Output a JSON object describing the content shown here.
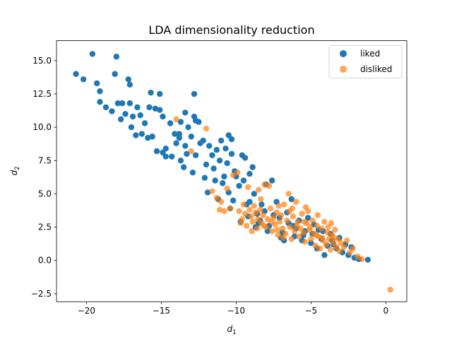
{
  "chart_data": {
    "type": "scatter",
    "title": "LDA dimensionality reduction",
    "xlabel": "d",
    "xlabel_sub": "1",
    "ylabel": "d",
    "ylabel_sub": "2",
    "xlim": [
      -22,
      1.4
    ],
    "ylim": [
      -3.1,
      16.5
    ],
    "xticks": [
      -20,
      -15,
      -10,
      -5,
      0
    ],
    "yticks": [
      -2.5,
      0.0,
      2.5,
      5.0,
      7.5,
      10.0,
      12.5,
      15.0
    ],
    "xtick_labels": [
      "−20",
      "−15",
      "−10",
      "−5",
      "0"
    ],
    "ytick_labels": [
      "−2.5",
      "0.0",
      "2.5",
      "5.0",
      "7.5",
      "10.0",
      "12.5",
      "15.0"
    ],
    "legend_position": "upper-right",
    "series": [
      {
        "name": "liked",
        "color": "#1f77b4",
        "points": [
          [
            -20.7,
            14.0
          ],
          [
            -20.2,
            13.6
          ],
          [
            -19.6,
            15.5
          ],
          [
            -19.3,
            13.3
          ],
          [
            -19.1,
            12.7
          ],
          [
            -19.1,
            11.9
          ],
          [
            -18.7,
            11.5
          ],
          [
            -18.3,
            11.2
          ],
          [
            -18.1,
            14.0
          ],
          [
            -18.0,
            15.3
          ],
          [
            -17.9,
            11.8
          ],
          [
            -17.7,
            10.6
          ],
          [
            -17.6,
            11.8
          ],
          [
            -17.2,
            13.6
          ],
          [
            -17.1,
            13.2
          ],
          [
            -17.1,
            11.8
          ],
          [
            -17.0,
            10.0
          ],
          [
            -16.9,
            10.8
          ],
          [
            -16.6,
            11.5
          ],
          [
            -16.4,
            10.9
          ],
          [
            -16.3,
            9.5
          ],
          [
            -16.1,
            10.3
          ],
          [
            -15.9,
            9.2
          ],
          [
            -15.8,
            11.5
          ],
          [
            -15.7,
            12.6
          ],
          [
            -15.6,
            9.3
          ],
          [
            -15.4,
            11.4
          ],
          [
            -15.1,
            11.3
          ],
          [
            -15.1,
            12.5
          ],
          [
            -14.9,
            10.8
          ],
          [
            -14.9,
            8.1
          ],
          [
            -14.7,
            8.4
          ],
          [
            -14.7,
            7.8
          ],
          [
            -14.4,
            10.3
          ],
          [
            -14.1,
            9.5
          ],
          [
            -14.0,
            8.8
          ],
          [
            -13.8,
            9.2
          ],
          [
            -13.8,
            9.5
          ],
          [
            -13.7,
            10.4
          ],
          [
            -13.7,
            7.5
          ],
          [
            -13.5,
            7.0
          ],
          [
            -13.4,
            8.6
          ],
          [
            -13.4,
            11.1
          ],
          [
            -13.2,
            10.0
          ],
          [
            -13.0,
            9.3
          ],
          [
            -12.8,
            12.5
          ],
          [
            -12.8,
            10.8
          ],
          [
            -12.7,
            10.5
          ],
          [
            -12.7,
            7.9
          ],
          [
            -12.5,
            10.4
          ],
          [
            -12.4,
            8.8
          ],
          [
            -12.2,
            9.0
          ],
          [
            -12.1,
            6.2
          ],
          [
            -12.0,
            7.2
          ],
          [
            -11.9,
            5.1
          ],
          [
            -11.8,
            8.6
          ],
          [
            -11.6,
            7.9
          ],
          [
            -11.5,
            6.9
          ],
          [
            -11.4,
            6.0
          ],
          [
            -11.3,
            8.3
          ],
          [
            -11.1,
            7.5
          ],
          [
            -11.0,
            9.0
          ],
          [
            -10.9,
            5.8
          ],
          [
            -10.8,
            6.3
          ],
          [
            -10.7,
            8.4
          ],
          [
            -10.6,
            7.3
          ],
          [
            -10.5,
            5.1
          ],
          [
            -10.5,
            9.4
          ],
          [
            -10.3,
            9.1
          ],
          [
            -10.3,
            8.0
          ],
          [
            -10.2,
            4.5
          ],
          [
            -10.1,
            6.7
          ],
          [
            -10.0,
            6.3
          ],
          [
            -9.8,
            5.6
          ],
          [
            -9.6,
            7.9
          ],
          [
            -9.5,
            6.0
          ],
          [
            -9.4,
            7.7
          ],
          [
            -9.3,
            4.2
          ],
          [
            -9.1,
            6.5
          ],
          [
            -8.9,
            7.0
          ],
          [
            -8.8,
            5.0
          ],
          [
            -8.6,
            3.5
          ],
          [
            -8.5,
            2.8
          ],
          [
            -8.3,
            4.2
          ],
          [
            -8.1,
            3.7
          ],
          [
            -8.0,
            5.7
          ],
          [
            -7.8,
            2.6
          ],
          [
            -7.6,
            6.0
          ],
          [
            -7.5,
            3.4
          ],
          [
            -7.3,
            4.4
          ],
          [
            -7.1,
            3.2
          ],
          [
            -6.9,
            2.1
          ],
          [
            -6.8,
            1.5
          ],
          [
            -6.6,
            3.6
          ],
          [
            -6.5,
            2.8
          ],
          [
            -6.3,
            4.6
          ],
          [
            -6.1,
            1.8
          ],
          [
            -6.0,
            2.4
          ],
          [
            -5.8,
            3.0
          ],
          [
            -5.6,
            1.5
          ],
          [
            -5.4,
            2.2
          ],
          [
            -5.2,
            3.2
          ],
          [
            -5.0,
            1.3
          ],
          [
            -4.8,
            2.7
          ],
          [
            -4.6,
            0.9
          ],
          [
            -4.5,
            2.3
          ],
          [
            -4.3,
            1.6
          ],
          [
            -4.1,
            0.4
          ],
          [
            -3.9,
            1.1
          ],
          [
            -3.7,
            2.0
          ],
          [
            -3.5,
            1.2
          ],
          [
            -3.3,
            0.9
          ],
          [
            -3.1,
            1.7
          ],
          [
            -2.9,
            0.6
          ],
          [
            -2.7,
            1.2
          ],
          [
            -2.5,
            0.4
          ],
          [
            -2.3,
            1.0
          ],
          [
            -2.1,
            0.2
          ],
          [
            -1.8,
            0.1
          ],
          [
            -1.2,
            0.05
          ],
          [
            -9.7,
            2.9
          ],
          [
            -9.2,
            3.3
          ],
          [
            -8.7,
            2.5
          ],
          [
            -8.4,
            3.0
          ],
          [
            -7.9,
            2.2
          ],
          [
            -7.0,
            1.7
          ],
          [
            -6.2,
            2.6
          ],
          [
            -5.5,
            1.9
          ],
          [
            -4.9,
            2.0
          ],
          [
            -4.2,
            2.2
          ],
          [
            -3.6,
            1.5
          ],
          [
            -9.1,
            4.4
          ],
          [
            -10.4,
            3.9
          ],
          [
            -11.2,
            4.6
          ],
          [
            -12.9,
            6.6
          ],
          [
            -13.3,
            8.0
          ],
          [
            -14.3,
            7.8
          ],
          [
            -15.3,
            8.2
          ],
          [
            -16.7,
            9.4
          ],
          [
            -17.4,
            11.0
          ]
        ]
      },
      {
        "name": "disliked",
        "color": "#ff7f0e",
        "points": [
          [
            -14.0,
            10.6
          ],
          [
            -13.0,
            8.2
          ],
          [
            -12.0,
            9.9
          ],
          [
            -11.6,
            5.2
          ],
          [
            -11.3,
            4.7
          ],
          [
            -11.0,
            4.4
          ],
          [
            -10.8,
            3.7
          ],
          [
            -10.4,
            3.9
          ],
          [
            -10.2,
            6.4
          ],
          [
            -9.9,
            6.6
          ],
          [
            -9.8,
            3.7
          ],
          [
            -9.6,
            3.1
          ],
          [
            -9.5,
            4.2
          ],
          [
            -9.3,
            2.6
          ],
          [
            -9.2,
            5.5
          ],
          [
            -9.0,
            3.3
          ],
          [
            -8.9,
            2.9
          ],
          [
            -8.8,
            4.1
          ],
          [
            -8.7,
            3.6
          ],
          [
            -8.6,
            2.4
          ],
          [
            -8.5,
            5.3
          ],
          [
            -8.4,
            3.8
          ],
          [
            -8.3,
            2.8
          ],
          [
            -8.2,
            3.4
          ],
          [
            -8.1,
            5.7
          ],
          [
            -8.0,
            2.5
          ],
          [
            -7.9,
            3.1
          ],
          [
            -7.8,
            5.6
          ],
          [
            -7.7,
            3.9
          ],
          [
            -7.6,
            2.2
          ],
          [
            -7.5,
            3.2
          ],
          [
            -7.4,
            2.7
          ],
          [
            -7.3,
            3.6
          ],
          [
            -7.2,
            1.9
          ],
          [
            -7.1,
            2.9
          ],
          [
            -7.0,
            3.4
          ],
          [
            -6.9,
            2.4
          ],
          [
            -6.8,
            4.2
          ],
          [
            -6.7,
            2.0
          ],
          [
            -6.6,
            3.0
          ],
          [
            -6.5,
            5.0
          ],
          [
            -6.4,
            2.5
          ],
          [
            -6.3,
            1.6
          ],
          [
            -6.2,
            3.3
          ],
          [
            -6.1,
            2.2
          ],
          [
            -6.0,
            4.4
          ],
          [
            -5.9,
            2.9
          ],
          [
            -5.8,
            1.8
          ],
          [
            -5.7,
            2.4
          ],
          [
            -5.6,
            3.5
          ],
          [
            -5.5,
            2.1
          ],
          [
            -5.4,
            1.4
          ],
          [
            -5.3,
            2.8
          ],
          [
            -5.2,
            3.7
          ],
          [
            -5.1,
            2.3
          ],
          [
            -5.0,
            1.6
          ],
          [
            -4.9,
            3.0
          ],
          [
            -4.8,
            2.0
          ],
          [
            -4.7,
            1.1
          ],
          [
            -4.6,
            2.6
          ],
          [
            -4.5,
            1.8
          ],
          [
            -4.4,
            0.9
          ],
          [
            -4.3,
            2.4
          ],
          [
            -4.2,
            1.5
          ],
          [
            -4.1,
            2.9
          ],
          [
            -4.0,
            1.2
          ],
          [
            -3.9,
            2.1
          ],
          [
            -3.8,
            1.6
          ],
          [
            -3.7,
            0.8
          ],
          [
            -3.6,
            1.9
          ],
          [
            -3.5,
            1.3
          ],
          [
            -3.4,
            2.3
          ],
          [
            -3.3,
            1.0
          ],
          [
            -3.2,
            1.6
          ],
          [
            -3.1,
            0.7
          ],
          [
            -3.0,
            1.3
          ],
          [
            -2.8,
            1.0
          ],
          [
            -2.6,
            1.5
          ],
          [
            -2.4,
            0.6
          ],
          [
            -2.2,
            0.9
          ],
          [
            -1.9,
            0.3
          ],
          [
            -1.6,
            0.1
          ],
          [
            0.3,
            -2.2
          ],
          [
            -9.7,
            2.8
          ],
          [
            -9.4,
            3.5
          ],
          [
            -8.95,
            2.2
          ],
          [
            -8.55,
            3.1
          ],
          [
            -8.15,
            2.6
          ],
          [
            -7.65,
            2.9
          ],
          [
            -7.25,
            2.3
          ],
          [
            -6.85,
            1.7
          ],
          [
            -6.45,
            3.7
          ],
          [
            -5.95,
            2.6
          ],
          [
            -5.45,
            2.9
          ],
          [
            -5.05,
            2.5
          ],
          [
            -4.65,
            1.9
          ],
          [
            -4.25,
            1.7
          ],
          [
            -3.85,
            2.5
          ],
          [
            -3.45,
            1.7
          ],
          [
            -10.6,
            5.4
          ],
          [
            -11.1,
            3.8
          ],
          [
            -9.1,
            3.8
          ],
          [
            -8.35,
            4.6
          ],
          [
            -7.15,
            4.1
          ],
          [
            -6.25,
            3.9
          ],
          [
            -5.35,
            4.0
          ],
          [
            -4.55,
            3.4
          ],
          [
            -3.65,
            2.8
          ]
        ]
      }
    ]
  }
}
